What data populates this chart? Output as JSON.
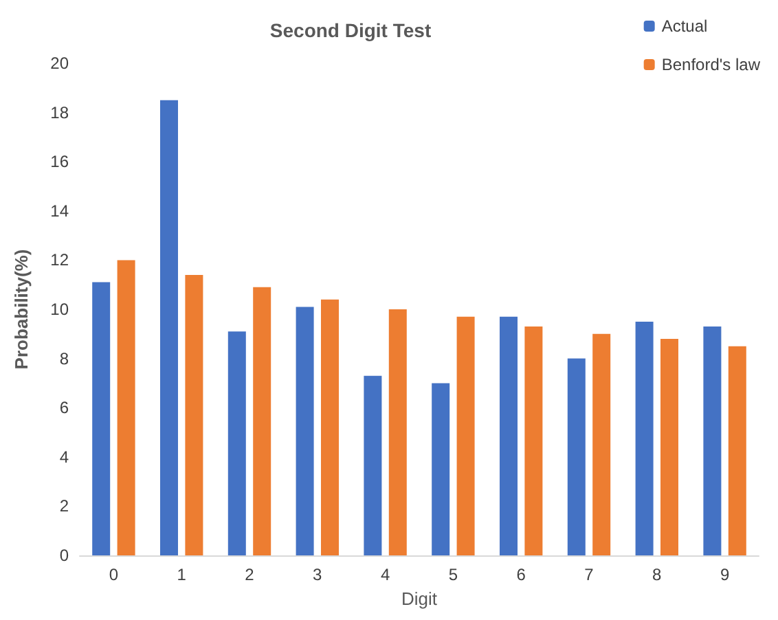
{
  "chart_data": {
    "type": "bar",
    "title": "Second Digit Test",
    "xlabel": "Digit",
    "ylabel": "Probability(%)",
    "categories": [
      "0",
      "1",
      "2",
      "3",
      "4",
      "5",
      "6",
      "7",
      "8",
      "9"
    ],
    "series": [
      {
        "name": "Actual",
        "color": "#4472c4",
        "values": [
          11.1,
          18.5,
          9.1,
          10.1,
          7.3,
          7.0,
          9.7,
          8.0,
          9.5,
          9.3
        ]
      },
      {
        "name": "Benford's law",
        "color": "#ed7d31",
        "values": [
          12.0,
          11.4,
          10.9,
          10.4,
          10.0,
          9.7,
          9.3,
          9.0,
          8.8,
          8.5
        ]
      }
    ],
    "ylim": [
      0,
      20
    ],
    "yticks": [
      0,
      2,
      4,
      6,
      8,
      10,
      12,
      14,
      16,
      18,
      20
    ],
    "grid": false,
    "legend": "top right"
  }
}
